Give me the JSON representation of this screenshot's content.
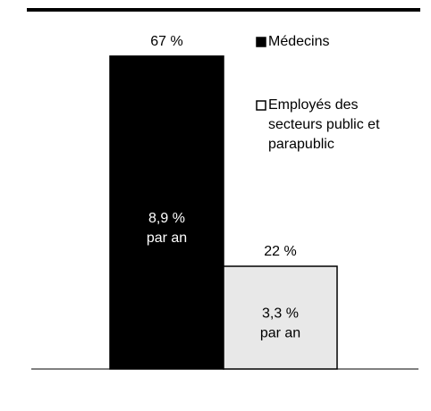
{
  "chart_data": {
    "type": "bar",
    "categories": [
      null
    ],
    "series": [
      {
        "name": "Médecins",
        "color": "#000000",
        "values": [
          67
        ],
        "value_labels": [
          "67 %"
        ],
        "annotation": [
          "8,9 %",
          "par an"
        ]
      },
      {
        "name": "Employés des secteurs public et parapublic",
        "color": "#e8e8e8",
        "values": [
          22
        ],
        "value_labels": [
          "22 %"
        ],
        "annotation": [
          "3,3 %",
          "par an"
        ]
      }
    ],
    "ylim": [
      0,
      75
    ]
  }
}
